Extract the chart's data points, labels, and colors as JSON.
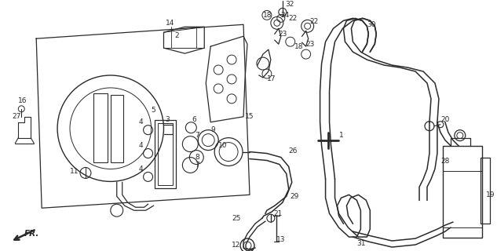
{
  "bg_color": "#ffffff",
  "line_color": "#2a2a2a",
  "figsize": [
    6.33,
    3.2
  ],
  "dpi": 100
}
